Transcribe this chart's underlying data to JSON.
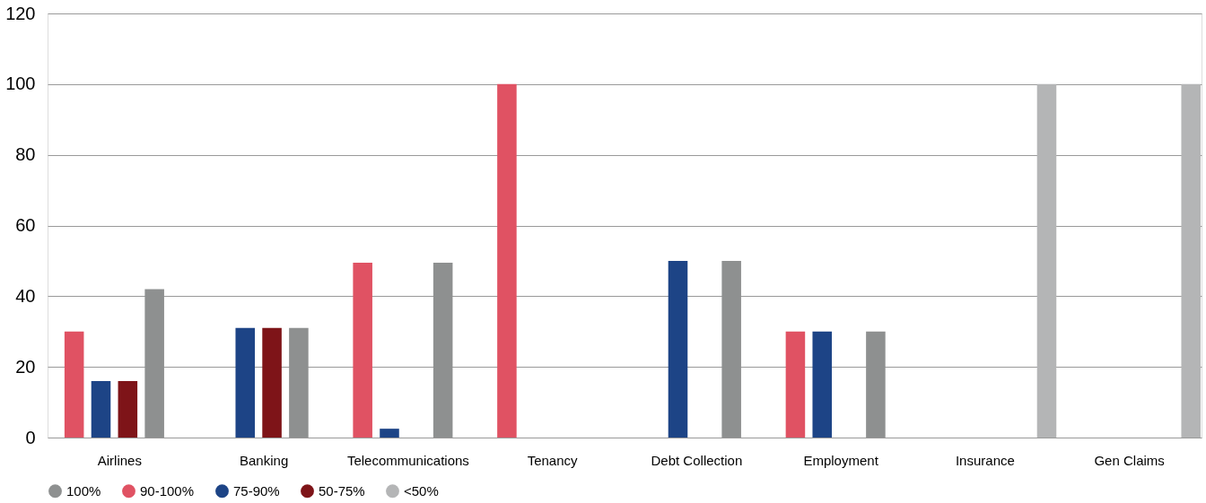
{
  "chart_data": {
    "type": "bar",
    "categories": [
      "Airlines",
      "Banking",
      "Telecommunications",
      "Tenancy",
      "Debt Collection",
      "Employment",
      "Insurance",
      "Gen Claims"
    ],
    "series": [
      {
        "name": "100%",
        "color": "#8e9090",
        "values": [
          42,
          31,
          49.5,
          null,
          50,
          30,
          null,
          null
        ]
      },
      {
        "name": "90-100%",
        "color": "#e05263",
        "values": [
          30,
          null,
          49.5,
          100,
          null,
          30,
          null,
          null
        ]
      },
      {
        "name": "75-90%",
        "color": "#1d4486",
        "values": [
          16,
          31,
          2.5,
          null,
          50,
          30,
          null,
          null
        ]
      },
      {
        "name": "50-75%",
        "color": "#7e1418",
        "values": [
          16,
          31,
          null,
          null,
          null,
          null,
          null,
          null
        ]
      },
      {
        "name": "<50%",
        "color": "#b4b5b6",
        "values": [
          null,
          null,
          null,
          null,
          null,
          null,
          100,
          100
        ]
      }
    ],
    "ylim": [
      0,
      120
    ],
    "yticks": [
      0,
      20,
      40,
      60,
      80,
      100,
      120
    ],
    "grid": "y",
    "legend": "bottom"
  }
}
